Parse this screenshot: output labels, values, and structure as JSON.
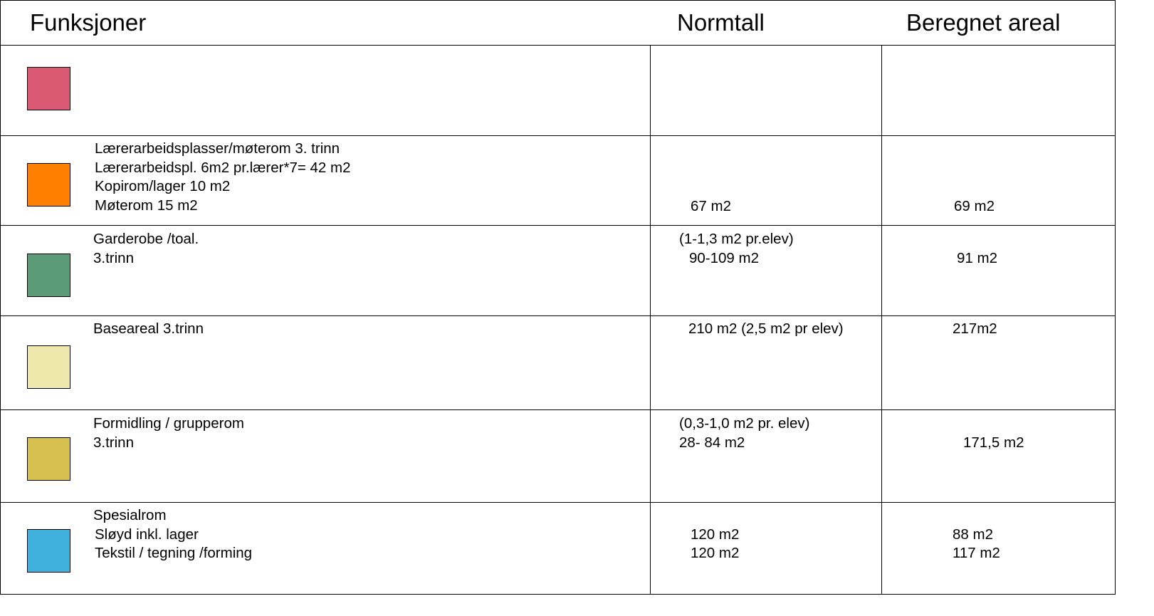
{
  "headers": {
    "functions": "Funksjoner",
    "norm": "Normtall",
    "calculated": "Beregnet areal"
  },
  "rows": [
    {
      "swatch_color": "#d95a72",
      "function_lines": [],
      "norm_lines": [],
      "calc_lines": []
    },
    {
      "swatch_color": "#ff8000",
      "function_lines": [
        "Lærerarbeidsplasser/møterom 3. trinn",
        "Lærerarbeidspl. 6m2 pr.lærer*7= 42 m2",
        "Kopirom/lager 10 m2",
        "Møterom 15 m2"
      ],
      "norm_lines": [
        "67 m2"
      ],
      "calc_lines": [
        "69 m2"
      ]
    },
    {
      "swatch_color": "#5b9b78",
      "function_lines": [
        "Garderobe /toal.",
        "3.trinn"
      ],
      "norm_lines": [
        "(1-1,3 m2 pr.elev)",
        " 90-109 m2"
      ],
      "calc_lines": [
        "91 m2"
      ]
    },
    {
      "swatch_color": "#efe8ad",
      "function_lines": [
        "Baseareal 3.trinn"
      ],
      "norm_lines": [
        "210 m2 (2,5 m2 pr elev)"
      ],
      "calc_lines": [
        "217m2"
      ]
    },
    {
      "swatch_color": "#d6c150",
      "function_lines": [
        "Formidling / grupperom",
        "3.trinn"
      ],
      "norm_lines": [
        "(0,3-1,0 m2 pr. elev)",
        "28- 84 m2"
      ],
      "calc_lines": [
        "171,5 m2"
      ]
    },
    {
      "swatch_color": "#40b0dc",
      "function_lines": [
        "Spesialrom",
        "Sløyd inkl. lager",
        "Tekstil / tegning /forming"
      ],
      "norm_lines": [
        "120 m2",
        "120 m2"
      ],
      "calc_lines": [
        "88 m2",
        "117 m2"
      ]
    }
  ]
}
